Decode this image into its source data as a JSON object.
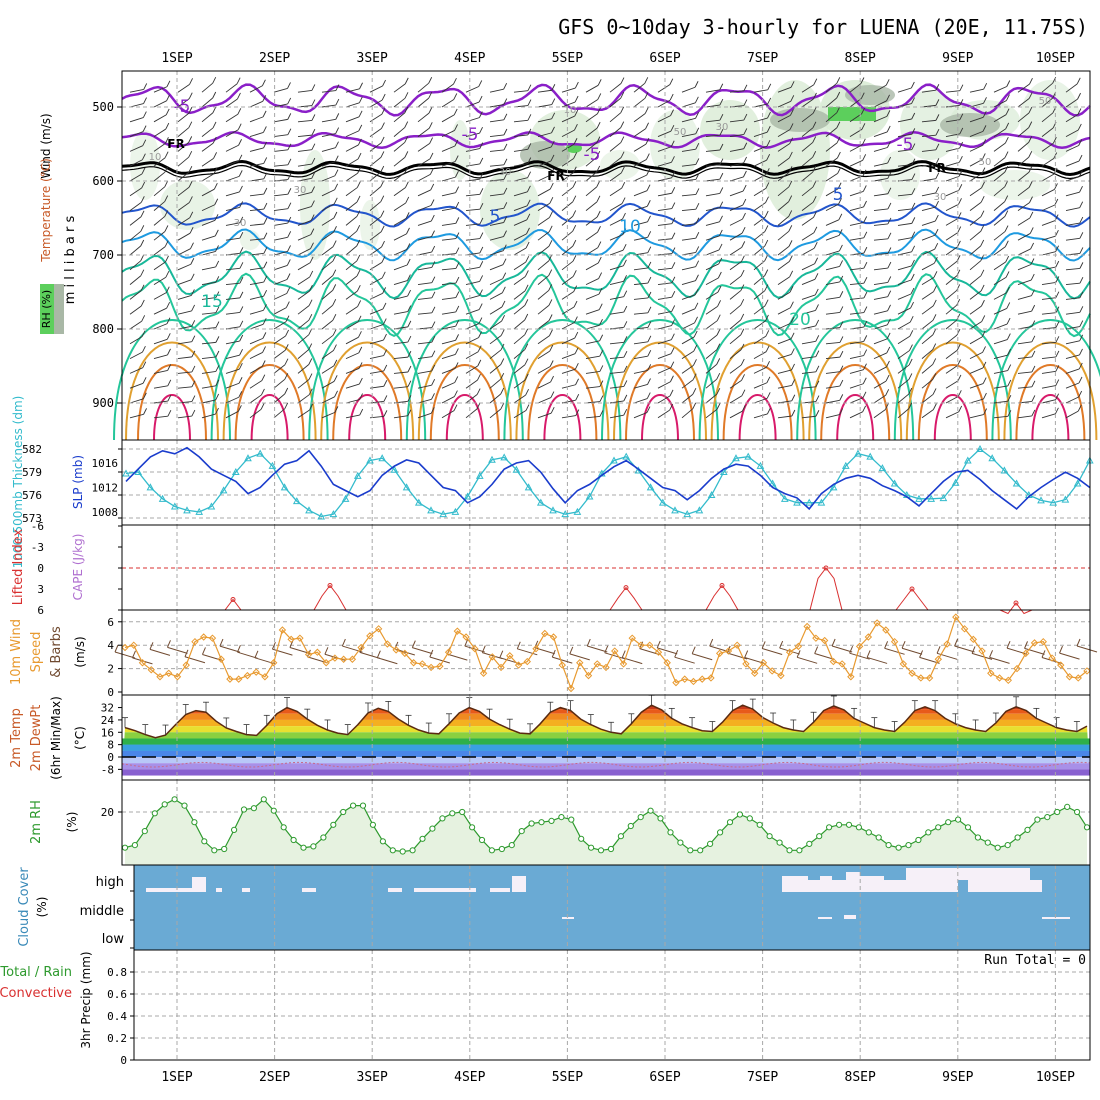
{
  "title": "GFS 0~10day 3-hourly for LUENA (20E, 11.75S)",
  "dates": [
    "1SEP",
    "2SEP",
    "3SEP",
    "4SEP",
    "5SEP",
    "6SEP",
    "7SEP",
    "8SEP",
    "9SEP",
    "10SEP"
  ],
  "colors": {
    "bg": "#ffffff",
    "grid": "#a8a8a8",
    "axis": "#000000",
    "rh_fill": "#d9ebd5",
    "rh_fill_dark": "#a9b8a6",
    "rh_green": "#5ccf5c",
    "thickness": "#33bbcc",
    "slp": "#1a3ccc",
    "lifted": "#d93030",
    "cape": "#b070d0",
    "wind10": "#e89a30",
    "barb": "#704a30",
    "rh2m": "#2e9a2e",
    "rh2m_fill": "#e6f2e0",
    "cloud": "#6aaad4",
    "cloud_white": "#f6f0f8",
    "precip_green": "#2e9a2e",
    "precip_red": "#d93030",
    "fr": "#000000",
    "t_neg5": "#8a1fc8",
    "t_5": "#2255cc",
    "t_10": "#1e9ae0",
    "t_15": "#18b89a",
    "t_20": "#24c69a",
    "t_25": "#e0a030",
    "t_30": "#e07a28",
    "t_35": "#d81a6a"
  },
  "panel1": {
    "ylabel_wind": "Wind (m/s)",
    "ylabel_temp": "Temperature (°C)",
    "ylabel_mb": "m i l l i b a r s",
    "ylabel_rh": "RH (%)",
    "pressure_ticks": [
      "500",
      "600",
      "700",
      "800",
      "900"
    ],
    "contour_labels": [
      "-5",
      "-5",
      "-5",
      "-5",
      "5",
      "5",
      "10",
      "15",
      "20",
      "FR",
      "FR",
      "FR"
    ],
    "rh_labels": [
      "10",
      "10",
      "30",
      "30",
      "30",
      "50",
      "50",
      "50",
      "30",
      "30"
    ]
  },
  "panel2": {
    "ylabel_thick": "1000-500mb Thickness (dm)",
    "ylabel_slp": "SLP (mb)",
    "thick_ticks": [
      "582",
      "579",
      "576",
      "573"
    ],
    "slp_ticks": [
      "1016",
      "1012",
      "1008"
    ]
  },
  "panel3": {
    "ylabel_li": "Lifted Index",
    "ylabel_cape": "CAPE (J/kg)",
    "ticks": [
      "-6",
      "-3",
      "0",
      "3",
      "6"
    ]
  },
  "panel4": {
    "ylabel_a": "10m Wind",
    "ylabel_b": "Speed",
    "ylabel_c": "& Barbs",
    "ylabel_units": "(m/s)",
    "ticks": [
      "6",
      "4",
      "2",
      "0"
    ]
  },
  "panel5": {
    "ylabel_a": "2m Temp",
    "ylabel_b": "2m DewPt",
    "ylabel_c": "(6hr Min/Max)",
    "ylabel_units": "(°C)",
    "ticks": [
      "32",
      "24",
      "16",
      "8",
      "0",
      "-8"
    ]
  },
  "panel6": {
    "ylabel": "2m RH",
    "ylabel_units": "(%)",
    "ticks": [
      "20"
    ]
  },
  "panel7": {
    "ylabel_a": "Cloud Cover",
    "ylabel_units": "(%)",
    "ticks": [
      "high",
      "middle",
      "low"
    ]
  },
  "panel8": {
    "ylabel_a": "Total / Rain",
    "ylabel_b": "Convective",
    "ylabel_c": "3hr Precip (mm)",
    "ticks": [
      "0.8",
      "0.6",
      "0.4",
      "0.2",
      "0"
    ],
    "run_total": "Run Total = 0"
  },
  "chart_data": [
    {
      "type": "line",
      "title": "1000-500mb Thickness (dm)",
      "x_step_hours": 3,
      "series": [
        {
          "name": "Thickness",
          "values": [
            578.8,
            579,
            577,
            575.5,
            574.5,
            574,
            573.8,
            574.5,
            576.6,
            579,
            580.8,
            581.4,
            579.8,
            577,
            575.2,
            574,
            573.2,
            573.5,
            575.5,
            578.5,
            580.5,
            580.8,
            579.3,
            577,
            575,
            574,
            573.5,
            573.8,
            575.8,
            578.5,
            580.6,
            580.9,
            579.3,
            577,
            575,
            574,
            573.5,
            573.8,
            575.8,
            578.8,
            580.5,
            581,
            579.2,
            577,
            575,
            574,
            573.5,
            574,
            576,
            579,
            580.8,
            581,
            579.8,
            577.5,
            575.5,
            575,
            575,
            575,
            577,
            579.8,
            581.4,
            581,
            579.5,
            577.5,
            576,
            575.5,
            575.5,
            575.6,
            577.6,
            580.5,
            582,
            580.8,
            579.2,
            577.5,
            576,
            575.3,
            575,
            575.4,
            577.5,
            580.5,
            582,
            580.8,
            579,
            577,
            575.5,
            575,
            575,
            575,
            577,
            580,
            581.8,
            580.8,
            579,
            577.3,
            576.5,
            576,
            576,
            576.5
          ]
        }
      ],
      "ylim": [
        572.5,
        583
      ]
    },
    {
      "type": "line",
      "title": "SLP (mb)",
      "x_step_hours": 3,
      "series": [
        {
          "name": "SLP",
          "values": [
            1013,
            1015,
            1017,
            1018,
            1017.5,
            1018.5,
            1017,
            1015,
            1014,
            1013,
            1011,
            1012,
            1014,
            1015.8,
            1016.4,
            1018,
            1015.5,
            1012.5,
            1011.5,
            1010.5,
            1011.5,
            1014,
            1015.5,
            1016.5,
            1016,
            1014,
            1012,
            1011.5,
            1009.5,
            1010.5,
            1012.5,
            1015,
            1016,
            1016.4,
            1014.5,
            1011.8,
            1009.5,
            1011.5,
            1012.5,
            1014,
            1015.4,
            1016.4,
            1015,
            1013.5,
            1012,
            1011.5,
            1010,
            1011.5,
            1013.5,
            1015,
            1015.8,
            1015.5,
            1014,
            1012,
            1011,
            1010.3,
            1008.5,
            1011,
            1012.5,
            1013.5,
            1014,
            1013.5,
            1012.3,
            1011.5,
            1010.5,
            1009,
            1011,
            1013,
            1014.5,
            1014.8,
            1013.3,
            1011.5,
            1010,
            1008.5,
            1010.5,
            1012,
            1013.3,
            1014.5,
            1013.5,
            1012,
            1011,
            1009.5,
            1010.2,
            1012,
            1013.4,
            1012.8,
            1012,
            1010.5,
            1008.5,
            1011.5,
            1013.4,
            1014,
            1012.5,
            1011,
            1010,
            1010,
            1012.5,
            1014,
            1014.5,
            1015.5
          ]
        }
      ],
      "ylim": [
        1005,
        1018.5
      ]
    },
    {
      "type": "line",
      "title": "10m Wind Speed (m/s)",
      "x_step_hours": 3,
      "series": [
        {
          "name": "10m Wind Speed",
          "values": [
            3.8,
            4,
            2.5,
            1.9,
            1.3,
            1.6,
            1.3,
            2.3,
            4.3,
            4.7,
            4.6,
            2.8,
            1.1,
            1.1,
            1.4,
            1.7,
            1.3,
            2.5,
            5.3,
            4.5,
            4.6,
            3.2,
            3.4,
            2.5,
            2.9,
            2.8,
            2.8,
            3.8,
            4.8,
            5.4,
            4.1,
            3.6,
            3.3,
            2.5,
            2.4,
            2.1,
            2.2,
            3.4,
            5.2,
            4.7,
            3.7,
            1.6,
            3,
            2.1,
            3.1,
            2.3,
            2.6,
            3.7,
            5,
            4.7,
            2.3,
            0.3,
            2.5,
            1.4,
            2.4,
            2.1,
            3.5,
            2.4,
            4.6,
            4,
            4,
            3.4,
            2.5,
            0.8,
            1.1,
            0.9,
            1.1,
            1.2,
            3.3,
            3.5,
            4,
            2.4,
            1.6,
            2.5,
            1.8,
            1.4,
            3.4,
            3.9,
            5.6,
            4.6,
            4.4,
            2.6,
            2.4,
            1.3,
            3.9,
            4.7,
            5.9,
            5.3,
            4.3,
            2.4,
            1.6,
            1.2,
            1.2,
            2.8,
            4.1,
            6.4,
            5.4,
            4.5,
            3.5,
            1.6,
            1.2,
            1,
            2,
            3.3,
            4.2,
            4.3,
            2.9,
            2.3,
            1.3,
            1.2,
            1.8
          ]
        }
      ],
      "ylim": [
        0,
        7
      ]
    },
    {
      "type": "area",
      "title": "2m Temp (°C)",
      "x_step_hours": 3,
      "series": [
        {
          "name": "2m Temp",
          "values": [
            19,
            17,
            14.5,
            12.5,
            14.2,
            21,
            27.5,
            30,
            29,
            23.2,
            18.8,
            16.5,
            14.5,
            14,
            20.5,
            28,
            32,
            29.5,
            24.5,
            20.5,
            17.5,
            15.5,
            14.5,
            21,
            28.5,
            31.5,
            29.5,
            24.5,
            20.5,
            17.5,
            15.5,
            15,
            21.5,
            28.5,
            32,
            29.5,
            24.5,
            21,
            18,
            15.5,
            15,
            21.5,
            29,
            32,
            30,
            24.5,
            21,
            18,
            16,
            15,
            21.5,
            29,
            33.5,
            30.5,
            25,
            21.5,
            19,
            17,
            16.5,
            22.5,
            30,
            33.5,
            31,
            25.5,
            22,
            19,
            17.5,
            16.5,
            22.5,
            30,
            33,
            30.5,
            25,
            22,
            19,
            17.5,
            16.5,
            22.5,
            30,
            32.5,
            30,
            25,
            21.5,
            19,
            17.5,
            16.5,
            22,
            29.5,
            32.5,
            30,
            25,
            22,
            19,
            17.5,
            16.5,
            20
          ]
        }
      ],
      "ylim": [
        -10,
        35
      ]
    },
    {
      "type": "area",
      "title": "2m RH (%)",
      "x_step_hours": 3,
      "series": [
        {
          "name": "2m RH",
          "values": [
            6,
            7,
            12.5,
            19.5,
            23,
            25,
            22.5,
            16,
            8.5,
            5,
            5.5,
            13,
            21,
            21.5,
            25,
            20.5,
            14,
            9,
            6,
            6.5,
            10,
            15,
            20,
            22.5,
            22.5,
            15,
            8.5,
            5,
            4.5,
            5,
            9.5,
            13.5,
            17.5,
            19.5,
            20,
            14,
            9,
            5,
            5.5,
            7,
            12.5,
            15.5,
            16,
            16.5,
            18,
            17,
            9.5,
            6,
            5,
            5.5,
            10.5,
            14.5,
            18,
            20.5,
            17.5,
            12,
            8,
            5,
            5,
            7.5,
            12,
            16,
            19,
            17.5,
            15,
            10.5,
            8,
            5,
            5,
            7.5,
            10.5,
            14,
            15,
            15,
            14,
            12,
            10,
            7,
            6,
            7,
            9,
            12,
            14,
            16,
            17,
            14,
            10,
            8,
            6,
            7,
            10,
            13,
            17,
            18,
            20,
            22,
            20,
            14
          ]
        }
      ],
      "ylim": [
        0,
        34
      ]
    },
    {
      "type": "bar",
      "title": "3hr Precip (mm)",
      "categories": [],
      "values": [],
      "ylim": [
        0,
        1
      ]
    }
  ]
}
